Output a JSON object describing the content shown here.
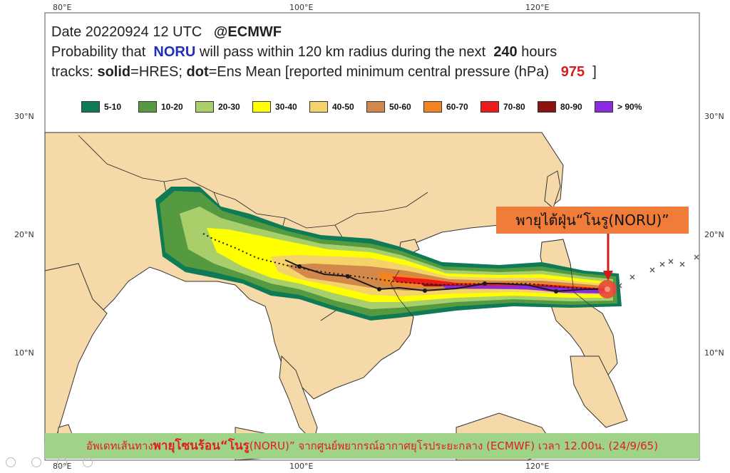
{
  "header": {
    "line1": "Date 20220924 12 UTC",
    "line1_org": "@ECMWF",
    "line2_a": "Probability that",
    "storm_name": "NORU",
    "line2_b": "will pass within 120 km radius during the next",
    "hours": "240",
    "line2_c": "hours",
    "line3_a": "tracks:",
    "solid_label": "solid",
    "solid_desc": "=HRES;",
    "dot_label": "dot",
    "dot_desc": "=Ens Mean [reported minimum central pressure (hPa)",
    "pressure": "975",
    "bracket": "]"
  },
  "legend": [
    {
      "label": "5-10",
      "color": "#0e7a56"
    },
    {
      "label": "10-20",
      "color": "#559a41"
    },
    {
      "label": "20-30",
      "color": "#a9cf6b"
    },
    {
      "label": "30-40",
      "color": "#ffff00"
    },
    {
      "label": "40-50",
      "color": "#f4d36b"
    },
    {
      "label": "50-60",
      "color": "#d2884a"
    },
    {
      "label": "60-70",
      "color": "#f18421"
    },
    {
      "label": "70-80",
      "color": "#ee1b1b"
    },
    {
      "label": "80-90",
      "color": "#8f1212"
    },
    {
      "label": "> 90%",
      "color": "#8a2be2"
    }
  ],
  "axes": {
    "top_lon": [
      "80°E",
      "100°E",
      "120°E"
    ],
    "bottom_lon": [
      "80°E",
      "100°E",
      "120°E"
    ],
    "left_lat": [
      "30°N",
      "20°N",
      "10°N"
    ],
    "right_lat": [
      "30°N",
      "20°N",
      "10°N"
    ]
  },
  "callout": "พายุไต้ฝุ่น“โนรู(NORU)”",
  "footer": {
    "part1": "อัพเดทเส้นทาง",
    "part2": "พายุโซนร้อน“โนรู",
    "part3": "(NORU)”  จากศูนย์พยากรณ์อากาศยุโรประยะกลาง (ECMWF) เวลา 12.00น. (24/9/65)"
  },
  "colors": {
    "land": "#f6d9a8",
    "sea": "#ffffff",
    "current_position": "#e8453c",
    "track": "#1a1a1a"
  }
}
